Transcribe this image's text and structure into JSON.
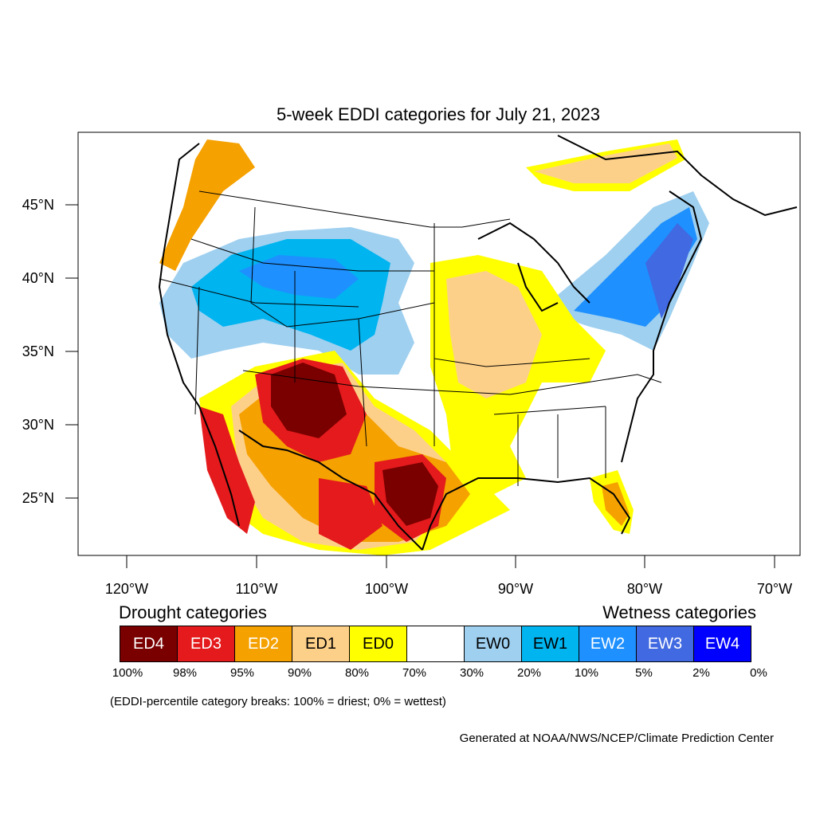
{
  "title": "5-week EDDI categories for July 21, 2023",
  "map": {
    "lat_labels": [
      "45°N",
      "40°N",
      "35°N",
      "30°N",
      "25°N"
    ],
    "lon_labels": [
      "120°W",
      "110°W",
      "100°W",
      "90°W",
      "80°W",
      "70°W"
    ]
  },
  "legend": {
    "drought_heading": "Drought categories",
    "wetness_heading": "Wetness categories",
    "categories": [
      {
        "label": "ED4",
        "color": "#7a0000",
        "text_color": "#ffffff"
      },
      {
        "label": "ED3",
        "color": "#e41a1c",
        "text_color": "#ffffff"
      },
      {
        "label": "ED2",
        "color": "#f5a100",
        "text_color": "#ffffff"
      },
      {
        "label": "ED1",
        "color": "#fdd08a",
        "text_color": "#000000"
      },
      {
        "label": "ED0",
        "color": "#ffff00",
        "text_color": "#000000"
      },
      {
        "label": "",
        "color": "#ffffff",
        "text_color": "#000000"
      },
      {
        "label": "EW0",
        "color": "#9fd0f0",
        "text_color": "#000000"
      },
      {
        "label": "EW1",
        "color": "#00b4f0",
        "text_color": "#000000"
      },
      {
        "label": "EW2",
        "color": "#1e90ff",
        "text_color": "#ffffff"
      },
      {
        "label": "EW3",
        "color": "#4169e1",
        "text_color": "#ffffff"
      },
      {
        "label": "EW4",
        "color": "#0000ff",
        "text_color": "#ffffff"
      }
    ],
    "breaks": [
      "100%",
      "98%",
      "95%",
      "90%",
      "80%",
      "70%",
      "30%",
      "20%",
      "10%",
      "5%",
      "2%",
      "0%"
    ],
    "note": "(EDDI-percentile category breaks: 100% = driest; 0% = wettest)"
  },
  "credit": "Generated at NOAA/NWS/NCEP/Climate Prediction Center"
}
